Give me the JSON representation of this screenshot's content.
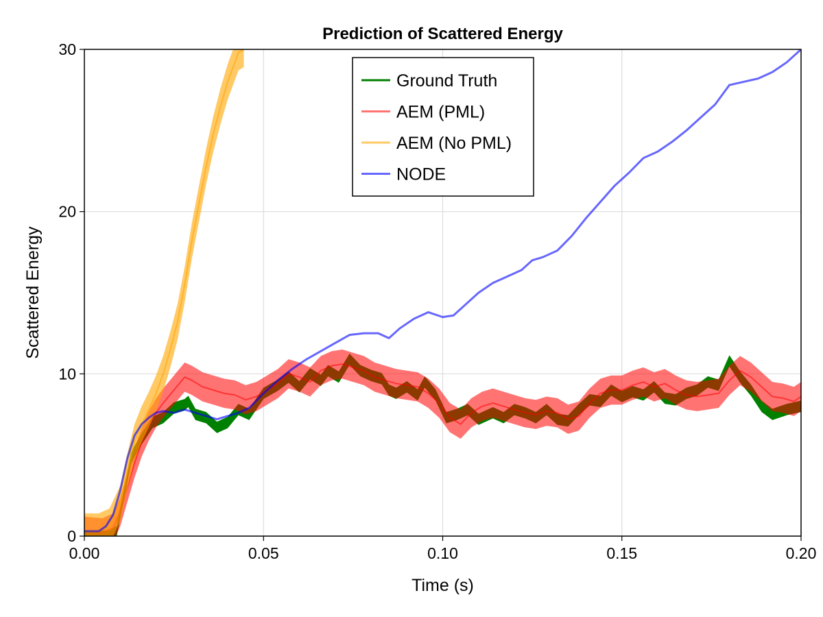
{
  "chart_data": {
    "type": "line",
    "title": "Prediction of Scattered Energy",
    "xlabel": "Time (s)",
    "ylabel": "Scattered Energy",
    "xlim": [
      0.0,
      0.2
    ],
    "ylim": [
      0,
      30
    ],
    "x_ticks": [
      0.0,
      0.05,
      0.1,
      0.15,
      0.2
    ],
    "x_tick_labels": [
      "0.00",
      "0.05",
      "0.10",
      "0.15",
      "0.20"
    ],
    "y_ticks": [
      0,
      10,
      20,
      30
    ],
    "y_tick_labels": [
      "0",
      "10",
      "20",
      "30"
    ],
    "grid": true,
    "legend_position": "top-center",
    "series": [
      {
        "name": "Ground Truth",
        "color": "#008000",
        "opacity": 1.0,
        "band": 0.35,
        "x": [
          0.0,
          0.007,
          0.009,
          0.011,
          0.013,
          0.016,
          0.019,
          0.022,
          0.025,
          0.028,
          0.029,
          0.031,
          0.034,
          0.037,
          0.04,
          0.043,
          0.046,
          0.05,
          0.054,
          0.057,
          0.06,
          0.063,
          0.066,
          0.068,
          0.071,
          0.074,
          0.077,
          0.08,
          0.083,
          0.085,
          0.087,
          0.09,
          0.093,
          0.095,
          0.098,
          0.101,
          0.104,
          0.107,
          0.11,
          0.114,
          0.117,
          0.12,
          0.123,
          0.126,
          0.129,
          0.132,
          0.135,
          0.138,
          0.141,
          0.144,
          0.147,
          0.15,
          0.153,
          0.156,
          0.159,
          0.162,
          0.165,
          0.168,
          0.171,
          0.174,
          0.177,
          0.18,
          0.183,
          0.186,
          0.189,
          0.192,
          0.196,
          0.2
        ],
        "y": [
          0.0,
          0.0,
          0.3,
          2.5,
          4.8,
          6.0,
          7.0,
          7.3,
          7.9,
          8.1,
          8.3,
          7.5,
          7.3,
          6.7,
          7.0,
          7.8,
          7.5,
          8.8,
          9.3,
          9.8,
          9.2,
          10.0,
          9.6,
          10.2,
          9.8,
          10.9,
          10.2,
          9.9,
          9.7,
          9.0,
          8.8,
          9.2,
          8.7,
          9.5,
          8.7,
          7.3,
          7.5,
          7.8,
          7.2,
          7.6,
          7.3,
          7.8,
          7.6,
          7.3,
          7.8,
          7.2,
          7.1,
          7.8,
          8.4,
          8.3,
          9.0,
          8.6,
          8.9,
          8.7,
          9.2,
          8.5,
          8.4,
          8.8,
          9.0,
          9.5,
          9.3,
          10.8,
          9.8,
          9.0,
          8.0,
          7.5,
          7.8,
          8.0
        ]
      },
      {
        "name": "AEM (PML)",
        "color": "#ff0000",
        "opacity": 0.55,
        "band": 0.9,
        "x": [
          0.0,
          0.005,
          0.008,
          0.01,
          0.012,
          0.014,
          0.016,
          0.018,
          0.02,
          0.022,
          0.025,
          0.028,
          0.03,
          0.033,
          0.036,
          0.039,
          0.042,
          0.045,
          0.048,
          0.051,
          0.054,
          0.057,
          0.06,
          0.063,
          0.066,
          0.069,
          0.072,
          0.075,
          0.078,
          0.081,
          0.084,
          0.087,
          0.09,
          0.093,
          0.096,
          0.099,
          0.102,
          0.105,
          0.108,
          0.111,
          0.114,
          0.117,
          0.12,
          0.123,
          0.126,
          0.129,
          0.132,
          0.135,
          0.138,
          0.141,
          0.144,
          0.147,
          0.15,
          0.153,
          0.156,
          0.159,
          0.162,
          0.165,
          0.168,
          0.171,
          0.174,
          0.177,
          0.18,
          0.183,
          0.186,
          0.189,
          0.192,
          0.195,
          0.198,
          0.2
        ],
        "y": [
          0.3,
          0.2,
          0.5,
          1.5,
          3.0,
          4.5,
          5.8,
          6.8,
          7.6,
          8.2,
          9.0,
          9.8,
          9.6,
          9.2,
          9.0,
          8.8,
          8.7,
          8.4,
          8.6,
          9.0,
          9.4,
          10.0,
          9.8,
          9.5,
          10.2,
          10.5,
          10.6,
          10.4,
          10.2,
          9.8,
          9.6,
          9.4,
          9.3,
          9.2,
          8.8,
          8.2,
          7.3,
          6.9,
          7.6,
          8.0,
          8.2,
          8.0,
          7.8,
          7.6,
          7.5,
          7.7,
          7.6,
          7.2,
          7.4,
          8.2,
          8.8,
          9.0,
          9.0,
          9.3,
          9.5,
          9.2,
          9.4,
          9.0,
          8.7,
          8.6,
          8.7,
          8.8,
          9.6,
          10.2,
          9.8,
          9.2,
          8.6,
          8.5,
          8.3,
          8.6
        ]
      },
      {
        "name": "AEM (No PML)",
        "color": "#ffa500",
        "opacity": 0.6,
        "band": 1.1,
        "x": [
          0.0,
          0.004,
          0.007,
          0.01,
          0.012,
          0.014,
          0.016,
          0.018,
          0.02,
          0.022,
          0.024,
          0.026,
          0.028,
          0.03,
          0.032,
          0.034,
          0.036,
          0.038,
          0.04,
          0.042,
          0.043,
          0.0445
        ],
        "y": [
          0.3,
          0.3,
          0.6,
          2.0,
          4.0,
          5.8,
          6.9,
          7.8,
          8.8,
          10.0,
          11.5,
          13.2,
          15.5,
          18.2,
          20.5,
          22.8,
          24.8,
          26.5,
          28.0,
          29.2,
          29.8,
          30.0
        ]
      },
      {
        "name": "NODE",
        "color": "#0000ff",
        "opacity": 0.6,
        "band": 0.0,
        "x": [
          0.0,
          0.004,
          0.006,
          0.008,
          0.01,
          0.012,
          0.014,
          0.016,
          0.018,
          0.02,
          0.022,
          0.025,
          0.028,
          0.031,
          0.034,
          0.037,
          0.04,
          0.043,
          0.046,
          0.05,
          0.054,
          0.058,
          0.062,
          0.066,
          0.07,
          0.074,
          0.078,
          0.082,
          0.085,
          0.088,
          0.092,
          0.096,
          0.1,
          0.103,
          0.106,
          0.11,
          0.114,
          0.118,
          0.122,
          0.125,
          0.128,
          0.132,
          0.136,
          0.14,
          0.144,
          0.148,
          0.152,
          0.156,
          0.16,
          0.164,
          0.168,
          0.172,
          0.176,
          0.18,
          0.184,
          0.188,
          0.192,
          0.196,
          0.2
        ],
        "y": [
          0.3,
          0.3,
          0.6,
          1.3,
          2.8,
          4.8,
          6.2,
          6.9,
          7.3,
          7.6,
          7.7,
          7.6,
          7.8,
          7.6,
          7.4,
          7.2,
          7.4,
          7.6,
          7.9,
          8.8,
          9.6,
          10.3,
          10.9,
          11.4,
          11.9,
          12.4,
          12.5,
          12.5,
          12.2,
          12.8,
          13.4,
          13.8,
          13.5,
          13.6,
          14.2,
          15.0,
          15.6,
          16.0,
          16.4,
          17.0,
          17.2,
          17.6,
          18.5,
          19.6,
          20.6,
          21.6,
          22.4,
          23.3,
          23.7,
          24.3,
          25.0,
          25.8,
          26.6,
          27.8,
          28.0,
          28.2,
          28.6,
          29.2,
          30.0
        ]
      }
    ]
  }
}
